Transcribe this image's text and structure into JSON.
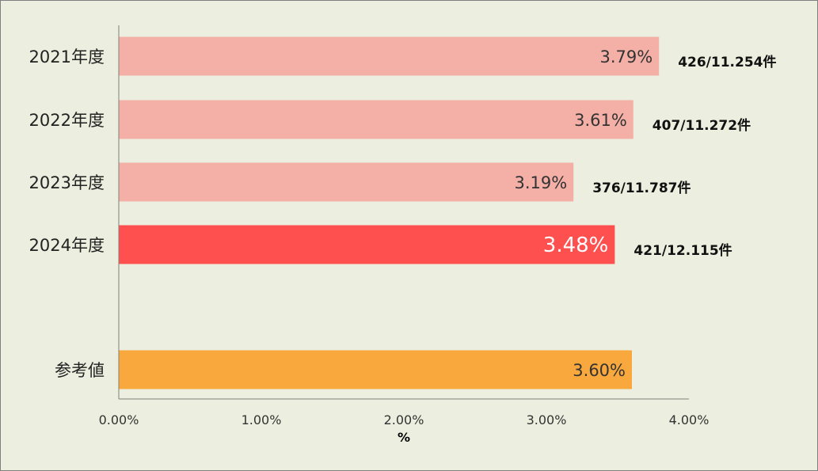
{
  "chart_data": {
    "type": "bar",
    "orientation": "horizontal",
    "title": "",
    "xlabel": "%",
    "ylabel": "",
    "xlim": [
      0,
      4
    ],
    "x_ticks": [
      "0.00%",
      "1.00%",
      "2.00%",
      "3.00%",
      "4.00%"
    ],
    "grid": false,
    "categories": [
      "2021年度",
      "2022年度",
      "2023年度",
      "2024年度",
      "参考値"
    ],
    "values": [
      3.79,
      3.61,
      3.19,
      3.48,
      3.6
    ],
    "value_labels": [
      "3.79%",
      "3.61%",
      "3.19%",
      "3.48%",
      "3.60%"
    ],
    "count_labels": [
      "426/11.254件",
      "407/11.272件",
      "376/11.787件",
      "421/12.115件",
      ""
    ],
    "colors": [
      "#f4b0a6",
      "#f4b0a6",
      "#f4b0a6",
      "#ff5050",
      "#f8a83c"
    ],
    "highlighted_index": 3
  },
  "colors": {
    "background": "#ecefdf",
    "axis": "#7f7f7f"
  }
}
